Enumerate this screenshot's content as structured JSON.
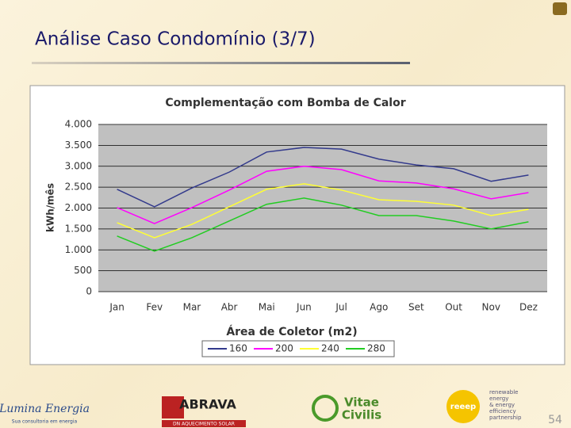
{
  "slide": {
    "title": "Análise Caso Condomínio (3/7)",
    "page_number": "54"
  },
  "chart_data": {
    "type": "line",
    "title": "Complementação com Bomba de Calor",
    "x_label": "Área de Coletor (m2)",
    "y_label": "kWh/mês",
    "categories": [
      "Jan",
      "Fev",
      "Mar",
      "Abr",
      "Mai",
      "Jun",
      "Jul",
      "Ago",
      "Set",
      "Out",
      "Nov",
      "Dez"
    ],
    "ylim": [
      0,
      4000
    ],
    "yticks": [
      0,
      500,
      {
        "value": 1000,
        "label": "1.000"
      },
      {
        "value": 1500,
        "label": "1.500"
      },
      {
        "value": 2000,
        "label": "2.000"
      },
      {
        "value": 2500,
        "label": "2.500"
      },
      {
        "value": 3000,
        "label": "3.000"
      },
      {
        "value": 3500,
        "label": "3.500"
      },
      {
        "value": 4000,
        "label": "4.000"
      }
    ],
    "grid": true,
    "legend": "bottom",
    "series": [
      {
        "name": "160",
        "color": "#333a8c",
        "values": [
          2450,
          2030,
          2480,
          2860,
          3340,
          3450,
          3410,
          3170,
          3030,
          2940,
          2640,
          2790
        ]
      },
      {
        "name": "200",
        "color": "#ff00ff",
        "values": [
          2010,
          1630,
          2010,
          2430,
          2880,
          3000,
          2920,
          2650,
          2600,
          2460,
          2220,
          2370
        ]
      },
      {
        "name": "240",
        "color": "#ffff33",
        "values": [
          1650,
          1290,
          1610,
          2030,
          2450,
          2580,
          2430,
          2200,
          2160,
          2070,
          1820,
          1970
        ]
      },
      {
        "name": "280",
        "color": "#22cc22",
        "values": [
          1330,
          970,
          1290,
          1690,
          2090,
          2240,
          2070,
          1820,
          1820,
          1690,
          1500,
          1670
        ]
      }
    ]
  },
  "logos": {
    "lumina": [
      "Lumina Energia",
      "Sua consultoria em energia"
    ],
    "abrava": [
      "ABRAVA",
      "DN AQUECIMENTO SOLAR"
    ],
    "vitae": [
      "Vitae",
      "Civilis"
    ],
    "reeep": [
      "reeep",
      "renewable",
      "energy",
      "& energy",
      "efficiency",
      "partnership"
    ]
  }
}
